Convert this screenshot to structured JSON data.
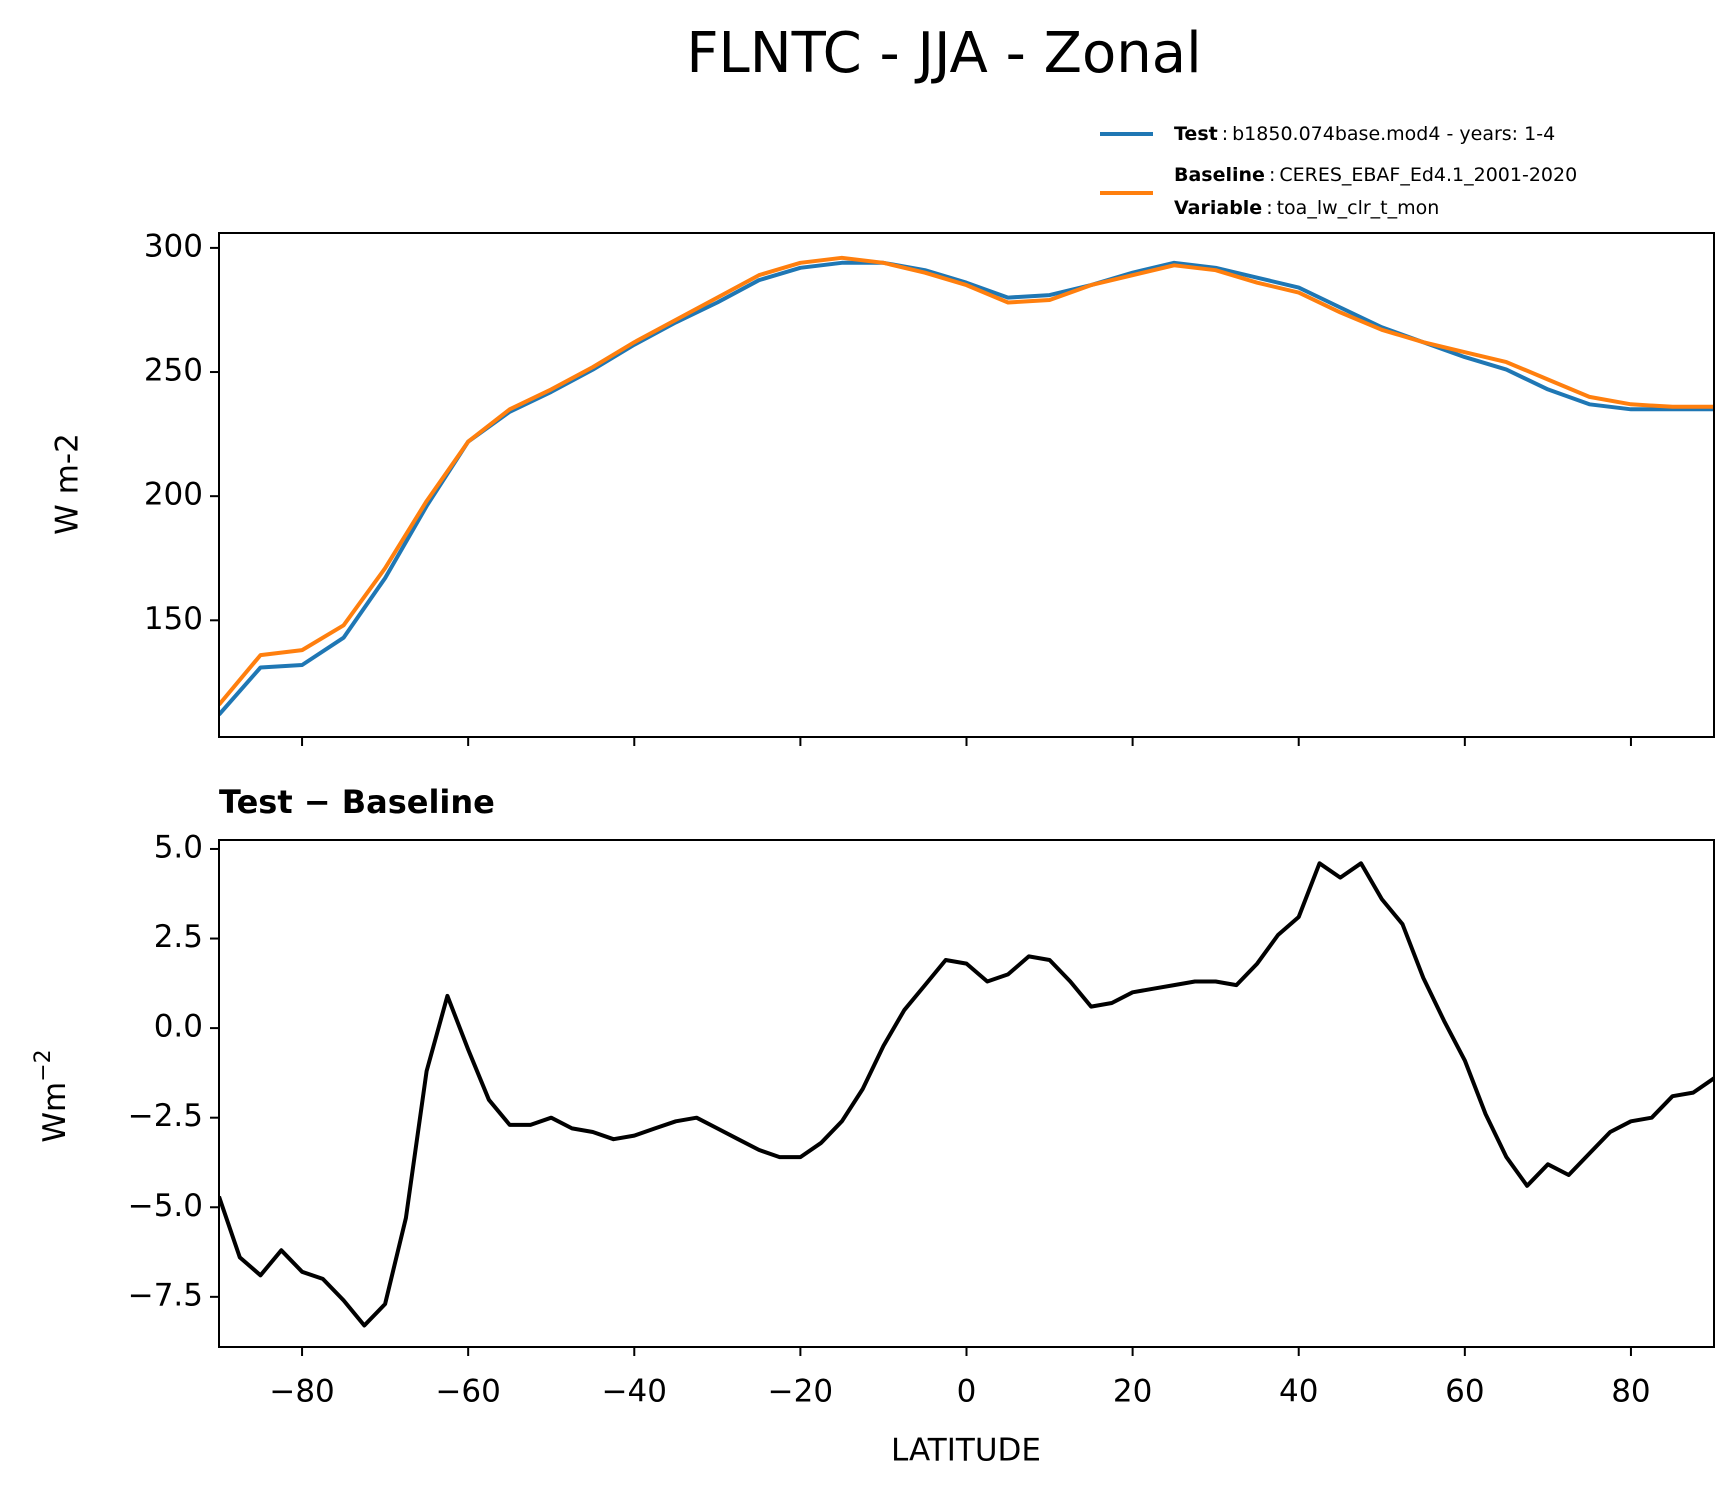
{
  "chart_data": [
    {
      "type": "line",
      "title": "FLNTC - JJA - Zonal",
      "ylabel": "W m-2",
      "x": [
        -90,
        -85,
        -80,
        -75,
        -70,
        -65,
        -60,
        -55,
        -50,
        -45,
        -40,
        -35,
        -30,
        -25,
        -20,
        -15,
        -10,
        -5,
        0,
        5,
        10,
        15,
        20,
        25,
        30,
        35,
        40,
        45,
        50,
        55,
        60,
        65,
        70,
        75,
        80,
        85,
        90
      ],
      "series": [
        {
          "name": "Test",
          "description": "b1850.074base.mod4 - years: 1-4",
          "color": "#1f77b4",
          "values": [
            112,
            131,
            132,
            143,
            167,
            196,
            222,
            234,
            242,
            251,
            261,
            270,
            278,
            287,
            292,
            294,
            294,
            291,
            286,
            280,
            281,
            285,
            290,
            294,
            292,
            288,
            284,
            276,
            268,
            262,
            256,
            251,
            243,
            237,
            235,
            235,
            235
          ]
        },
        {
          "name": "Baseline",
          "description": "CERES_EBAF_Ed4.1_2001-2020",
          "color": "#ff7f0e",
          "values": [
            116,
            136,
            138,
            148,
            171,
            198,
            222,
            235,
            243,
            252,
            262,
            271,
            280,
            289,
            294,
            296,
            294,
            290,
            285,
            278,
            279,
            285,
            289,
            293,
            291,
            286,
            282,
            274,
            267,
            262,
            258,
            254,
            247,
            240,
            237,
            236,
            236
          ]
        }
      ],
      "legend_separator": ":",
      "legend_extra": {
        "name": "Variable",
        "description": "toa_lw_clr_t_mon"
      },
      "legend_position": "upper right",
      "xlim": [
        -90,
        90
      ],
      "ylim": [
        103,
        306
      ],
      "yticks": [
        150,
        200,
        250,
        300
      ]
    },
    {
      "type": "line",
      "title": "Test − Baseline",
      "xlabel": "LATITUDE",
      "ylabel": {
        "base": "Wm",
        "superscript": "−2"
      },
      "x": [
        -90,
        -87.5,
        -85,
        -82.5,
        -80,
        -77.5,
        -75,
        -72.5,
        -70,
        -67.5,
        -65,
        -62.5,
        -60,
        -57.5,
        -55,
        -52.5,
        -50,
        -47.5,
        -45,
        -42.5,
        -40,
        -37.5,
        -35,
        -32.5,
        -30,
        -27.5,
        -25,
        -22.5,
        -20,
        -17.5,
        -15,
        -12.5,
        -10,
        -7.5,
        -5,
        -2.5,
        0,
        2.5,
        5,
        7.5,
        10,
        12.5,
        15,
        17.5,
        20,
        22.5,
        25,
        27.5,
        30,
        32.5,
        35,
        37.5,
        40,
        42.5,
        45,
        47.5,
        50,
        52.5,
        55,
        57.5,
        60,
        62.5,
        65,
        67.5,
        70,
        72.5,
        75,
        77.5,
        80,
        82.5,
        85,
        87.5,
        90
      ],
      "series": [
        {
          "name": "Test − Baseline",
          "color": "#000000",
          "values": [
            -4.7,
            -6.4,
            -6.9,
            -6.2,
            -6.8,
            -7.0,
            -7.6,
            -8.3,
            -7.7,
            -5.3,
            -1.2,
            0.9,
            -0.6,
            -2.0,
            -2.7,
            -2.7,
            -2.5,
            -2.8,
            -2.9,
            -3.1,
            -3.0,
            -2.8,
            -2.6,
            -2.5,
            -2.8,
            -3.1,
            -3.4,
            -3.6,
            -3.6,
            -3.2,
            -2.6,
            -1.7,
            -0.5,
            0.5,
            1.2,
            1.9,
            1.8,
            1.3,
            1.5,
            2.0,
            1.9,
            1.3,
            0.6,
            0.7,
            1.0,
            1.1,
            1.2,
            1.3,
            1.3,
            1.2,
            1.8,
            2.6,
            3.1,
            4.6,
            4.2,
            4.6,
            3.6,
            2.9,
            1.4,
            0.2,
            -0.9,
            -2.4,
            -3.6,
            -4.4,
            -3.8,
            -4.1,
            -3.5,
            -2.9,
            -2.6,
            -2.5,
            -1.9,
            -1.8,
            -1.4
          ]
        }
      ],
      "xlim": [
        -90,
        90
      ],
      "ylim": [
        -8.9,
        5.25
      ],
      "xticks": [
        {
          "value": -80,
          "label": "−80"
        },
        {
          "value": -60,
          "label": "−60"
        },
        {
          "value": -40,
          "label": "−40"
        },
        {
          "value": -20,
          "label": "−20"
        },
        0,
        20,
        40,
        60,
        80
      ],
      "yticks": [
        {
          "value": -7.5,
          "label": "−7.5"
        },
        {
          "value": -5,
          "label": "−5.0"
        },
        {
          "value": -2.5,
          "label": "−2.5"
        },
        {
          "value": 0,
          "label": "0.0"
        },
        {
          "value": 2.5,
          "label": "2.5"
        },
        {
          "value": 5,
          "label": "5.0"
        }
      ]
    }
  ]
}
